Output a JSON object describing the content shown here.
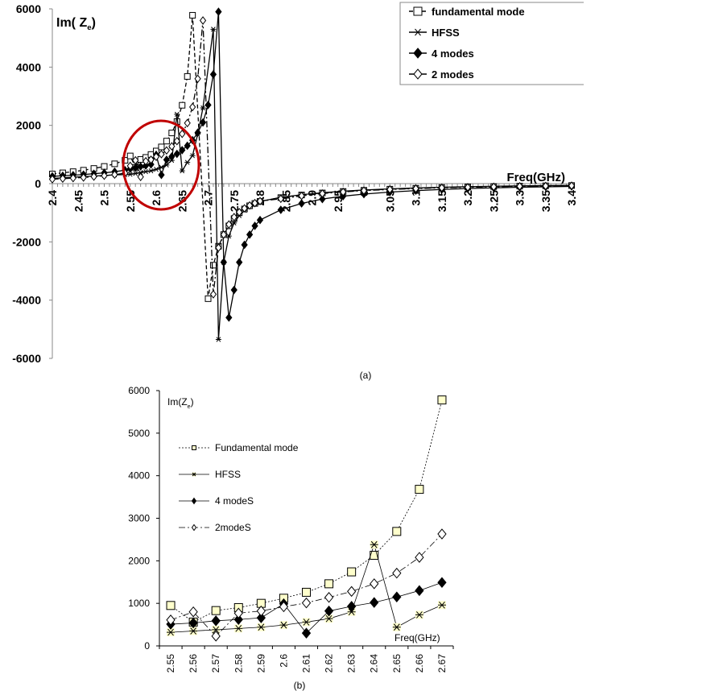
{
  "chart_data": [
    {
      "type": "line",
      "caption": "(a)",
      "ylabel_parts": [
        "Im( Z",
        "e",
        ")"
      ],
      "xlabel": "Freq(GHz)",
      "xlim": [
        2.4,
        3.4
      ],
      "ylim": [
        -6000,
        6000
      ],
      "yticks": [
        6000,
        4000,
        2000,
        0,
        -2000,
        -4000,
        -6000
      ],
      "xticks": [
        "2.4",
        "2.45",
        "2.5",
        "2.55",
        "2.6",
        "2.65",
        "2.7",
        "2.75",
        "2.8",
        "2.85",
        "2.9",
        "2.95",
        "3",
        "3.05",
        "3.1",
        "3.15",
        "3.2",
        "3.25",
        "3.3",
        "3.35",
        "3.4"
      ],
      "legend_position": "top-right",
      "highlight": "red ellipse around 2.55-2.67",
      "highlight_color": "#c00000",
      "x": [
        2.4,
        2.42,
        2.44,
        2.46,
        2.48,
        2.5,
        2.52,
        2.54,
        2.55,
        2.56,
        2.57,
        2.58,
        2.59,
        2.6,
        2.61,
        2.62,
        2.63,
        2.64,
        2.65,
        2.66,
        2.67,
        2.68,
        2.69,
        2.7,
        2.71,
        2.72,
        2.73,
        2.74,
        2.75,
        2.76,
        2.77,
        2.78,
        2.79,
        2.8,
        2.84,
        2.88,
        2.92,
        2.96,
        3.0,
        3.05,
        3.1,
        3.15,
        3.2,
        3.25,
        3.3,
        3.35,
        3.4
      ],
      "series": [
        {
          "name": "fundamental mode",
          "marker": "square",
          "dash": "dashed",
          "values": [
            330,
            370,
            410,
            460,
            520,
            590,
            680,
            800,
            950,
            560,
            830,
            900,
            1000,
            1120,
            1260,
            1460,
            1740,
            2130,
            2690,
            3680,
            5780,
            null,
            null,
            -3950,
            -2800,
            -2150,
            -1750,
            -1450,
            -1200,
            -1000,
            -870,
            -760,
            -680,
            -610,
            -480,
            -390,
            -320,
            -270,
            -230,
            -190,
            -160,
            -135,
            -115,
            -100,
            -85,
            -75,
            -65
          ]
        },
        {
          "name": "HFSS",
          "marker": "star",
          "dash": "solid",
          "values": [
            180,
            200,
            220,
            240,
            260,
            280,
            300,
            310,
            320,
            350,
            380,
            410,
            440,
            490,
            560,
            640,
            800,
            2380,
            440,
            730,
            960,
            1700,
            2600,
            null,
            5300,
            -5350,
            -2700,
            -1800,
            -1350,
            -1100,
            -920,
            -790,
            -690,
            -610,
            -470,
            -380,
            -310,
            -260,
            -220,
            -180,
            -150,
            -125,
            -105,
            -90,
            -78,
            -68,
            -60
          ]
        },
        {
          "name": "4 modes",
          "marker": "diamond-filled",
          "dash": "solid",
          "values": [
            250,
            270,
            290,
            310,
            340,
            370,
            410,
            460,
            510,
            540,
            590,
            620,
            660,
            990,
            300,
            820,
            930,
            1020,
            1150,
            1300,
            1490,
            1750,
            2100,
            2700,
            3750,
            5900,
            -2700,
            -4600,
            -3650,
            -2700,
            -2100,
            -1750,
            -1450,
            -1250,
            -900,
            -680,
            -530,
            -430,
            -360,
            -290,
            -240,
            -200,
            -170,
            -145,
            -125,
            -110,
            -95
          ]
        },
        {
          "name": "2 modes",
          "marker": "diamond-open",
          "dash": "dashdot",
          "values": [
            150,
            170,
            190,
            210,
            240,
            270,
            310,
            360,
            610,
            800,
            230,
            770,
            820,
            920,
            1010,
            1140,
            1280,
            1460,
            1710,
            2080,
            2630,
            3600,
            5600,
            null,
            -3800,
            -2200,
            -1750,
            -1400,
            -1150,
            -980,
            -850,
            -750,
            -670,
            -600,
            -520,
            -420,
            -340,
            -285,
            -240,
            -200,
            -170,
            -145,
            -125,
            -108,
            -92,
            -80,
            -70
          ]
        }
      ]
    },
    {
      "type": "line",
      "caption": "(b)",
      "ylabel_parts": [
        "Im(Z",
        "e",
        ")"
      ],
      "xlabel": "Freq(GHz)",
      "ylim": [
        0,
        6000
      ],
      "yticks": [
        0,
        1000,
        2000,
        3000,
        4000,
        5000,
        6000
      ],
      "categories": [
        "2.55",
        "2.56",
        "2.57",
        "2.58",
        "2.59",
        "2.6",
        "2.61",
        "2.62",
        "2.63",
        "2.64",
        "2.65",
        "2.66",
        "2.67"
      ],
      "legend_position": "top-left",
      "marker_fill": "#ffffcc",
      "series": [
        {
          "name": "Fundamental mode",
          "marker": "square",
          "dash": "dotted",
          "values": [
            950,
            560,
            830,
            900,
            1000,
            1120,
            1260,
            1460,
            1740,
            2130,
            2690,
            3680,
            5780
          ]
        },
        {
          "name": "HFSS",
          "marker": "star",
          "dash": "solid",
          "values": [
            320,
            350,
            380,
            410,
            440,
            490,
            560,
            640,
            800,
            2380,
            440,
            730,
            960
          ]
        },
        {
          "name": "4 modeS",
          "marker": "diamond-filled",
          "dash": "solid",
          "values": [
            510,
            540,
            590,
            620,
            660,
            990,
            300,
            820,
            930,
            1020,
            1150,
            1300,
            1490
          ]
        },
        {
          "name": "2modeS",
          "marker": "diamond-open",
          "dash": "dashdot",
          "values": [
            610,
            800,
            230,
            770,
            820,
            920,
            1010,
            1140,
            1280,
            1460,
            1710,
            2080,
            2630
          ]
        }
      ]
    }
  ]
}
